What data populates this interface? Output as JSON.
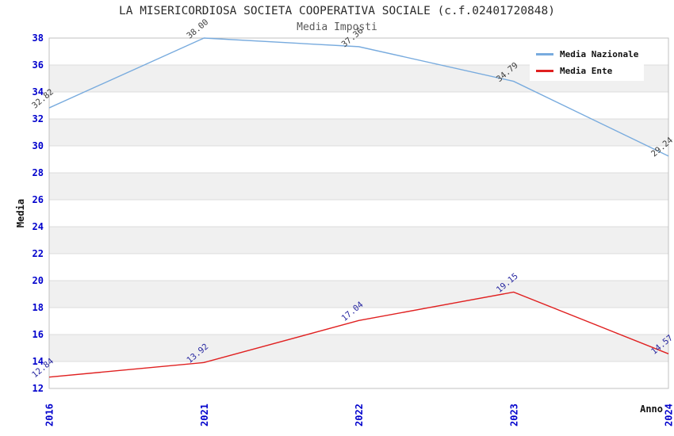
{
  "chart_data": {
    "type": "line",
    "title": "LA MISERICORDIOSA SOCIETA COOPERATIVA SOCIALE (c.f.02401720848)",
    "subtitle": "Media Imposti",
    "xlabel": "Anno",
    "ylabel": "Media",
    "x_categories": [
      "2016",
      "2021",
      "2022",
      "2023",
      "2024"
    ],
    "series": [
      {
        "name": "Media Nazionale",
        "color": "#78abde",
        "label_color": "#3c3c3c",
        "values": [
          32.82,
          38.0,
          37.36,
          34.79,
          29.24
        ],
        "labels": [
          "32.82",
          "38.00",
          "37.36",
          "34.79",
          "29.24"
        ]
      },
      {
        "name": "Media Ente",
        "color": "#e02020",
        "label_color": "#2626a0",
        "values": [
          12.84,
          13.92,
          17.04,
          19.15,
          14.57
        ],
        "labels": [
          "12.84",
          "13.92",
          "17.04",
          "19.15",
          "14.57"
        ]
      }
    ],
    "ylim": [
      12,
      38
    ],
    "ytick_step": 2,
    "yticks": [
      12,
      14,
      16,
      18,
      20,
      22,
      24,
      26,
      28,
      30,
      32,
      34,
      36,
      38
    ],
    "grid": true,
    "legend_position": "upper right",
    "band_color": "#f0f0f0",
    "gridline_color": "#dcdcdc",
    "frame_color": "#c0c0c0",
    "tick_label_color": "#0000cc"
  }
}
